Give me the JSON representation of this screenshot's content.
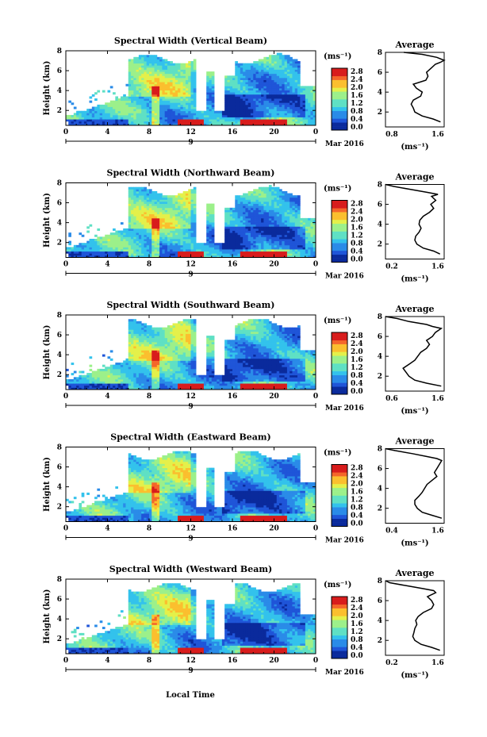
{
  "figure": {
    "footer_xlabel": "Local Time",
    "units_label": "(ms⁻¹)",
    "colorbar_ticks": [
      "2.8",
      "2.4",
      "2.0",
      "1.6",
      "1.2",
      "0.8",
      "0.4",
      "0.0"
    ],
    "colormap": [
      "#0a2a9c",
      "#1f55d8",
      "#2a8be8",
      "#33c2ec",
      "#5fe0c4",
      "#9cf08a",
      "#e4f04a",
      "#fbbf2e",
      "#f4662a",
      "#d81c1c"
    ],
    "date_label": "Mar 2016",
    "day_label": "9"
  },
  "chart_data": [
    {
      "type": "heatmap",
      "title": "Spectral Width (Vertical Beam)",
      "ylabel": "Height (km)",
      "xlim": [
        0,
        24
      ],
      "ylim": [
        0.5,
        8
      ],
      "xticks": [
        "0",
        "4",
        "8",
        "12",
        "16",
        "20",
        "0"
      ],
      "yticks": [
        "2",
        "4",
        "6",
        "8"
      ],
      "colorbar": {
        "range": [
          0.0,
          2.8
        ],
        "units": "(ms⁻¹)"
      },
      "profile": {
        "type": "line",
        "title": "Average",
        "xlabel": "(ms⁻¹)",
        "xlim": [
          0.8,
          1.6
        ],
        "xticks": [
          "0.8",
          "1.6"
        ],
        "ylim": [
          0.5,
          8
        ],
        "yticks": [
          "2",
          "4",
          "6",
          "8"
        ],
        "x": [
          1.55,
          1.45,
          1.3,
          1.2,
          1.18,
          1.15,
          1.18,
          1.28,
          1.3,
          1.22,
          1.18,
          1.35,
          1.38,
          1.36,
          1.42,
          1.48,
          1.55,
          1.6,
          1.5,
          1.3,
          1.05
        ],
        "y": [
          1.0,
          1.3,
          1.6,
          2.0,
          2.4,
          2.8,
          3.2,
          3.6,
          4.0,
          4.4,
          4.8,
          5.2,
          5.6,
          6.0,
          6.4,
          6.8,
          7.0,
          7.2,
          7.5,
          7.8,
          8.0
        ]
      }
    },
    {
      "type": "heatmap",
      "title": "Spectral Width (Northward Beam)",
      "ylabel": "Height (km)",
      "xlim": [
        0,
        24
      ],
      "ylim": [
        0.5,
        8
      ],
      "xticks": [
        "0",
        "4",
        "8",
        "12",
        "16",
        "20",
        "0"
      ],
      "yticks": [
        "2",
        "4",
        "6",
        "8"
      ],
      "colorbar": {
        "range": [
          0.0,
          2.8
        ],
        "units": "(ms⁻¹)"
      },
      "profile": {
        "type": "line",
        "title": "Average",
        "xlabel": "(ms⁻¹)",
        "xlim": [
          0.2,
          1.6
        ],
        "xticks": [
          "0.2",
          "1.6"
        ],
        "ylim": [
          0.5,
          8
        ],
        "yticks": [
          "2",
          "4",
          "6",
          "8"
        ],
        "x": [
          1.5,
          1.35,
          1.1,
          0.95,
          0.9,
          0.92,
          1.0,
          1.05,
          1.0,
          1.02,
          1.1,
          1.25,
          1.35,
          1.28,
          1.4,
          1.3,
          1.45,
          1.2,
          0.8,
          0.4,
          0.2
        ],
        "y": [
          1.0,
          1.3,
          1.6,
          2.0,
          2.4,
          2.8,
          3.2,
          3.6,
          4.0,
          4.4,
          4.8,
          5.2,
          5.6,
          6.0,
          6.4,
          6.8,
          7.0,
          7.2,
          7.5,
          7.8,
          8.0
        ]
      }
    },
    {
      "type": "heatmap",
      "title": "Spectral Width (Southward Beam)",
      "ylabel": "Height (km)",
      "xlim": [
        0,
        24
      ],
      "ylim": [
        0.5,
        8
      ],
      "xticks": [
        "0",
        "4",
        "8",
        "12",
        "16",
        "20",
        "0"
      ],
      "yticks": [
        "2",
        "4",
        "6",
        "8"
      ],
      "colorbar": {
        "range": [
          0.0,
          2.8
        ],
        "units": "(ms⁻¹)"
      },
      "profile": {
        "type": "line",
        "title": "Average",
        "xlabel": "(ms⁻¹)",
        "xlim": [
          0.6,
          1.6
        ],
        "xticks": [
          "0.6",
          "1.6"
        ],
        "ylim": [
          0.5,
          8
        ],
        "yticks": [
          "2",
          "4",
          "6",
          "8"
        ],
        "x": [
          1.55,
          1.3,
          1.1,
          1.0,
          0.95,
          0.9,
          1.0,
          1.1,
          1.15,
          1.2,
          1.3,
          1.35,
          1.3,
          1.4,
          1.45,
          1.55,
          1.4,
          1.3,
          1.0,
          0.8,
          0.6
        ],
        "y": [
          1.0,
          1.3,
          1.6,
          2.0,
          2.4,
          2.8,
          3.2,
          3.6,
          4.0,
          4.4,
          4.8,
          5.2,
          5.6,
          6.0,
          6.4,
          6.8,
          7.0,
          7.2,
          7.5,
          7.8,
          8.0
        ]
      }
    },
    {
      "type": "heatmap",
      "title": "Spectral Width (Eastward Beam)",
      "ylabel": "Height (km)",
      "xlim": [
        0,
        24
      ],
      "ylim": [
        0.5,
        8
      ],
      "xticks": [
        "0",
        "4",
        "8",
        "12",
        "16",
        "20",
        "0"
      ],
      "yticks": [
        "2",
        "4",
        "6",
        "8"
      ],
      "colorbar": {
        "range": [
          0.0,
          2.8
        ],
        "units": "(ms⁻¹)"
      },
      "profile": {
        "type": "line",
        "title": "Average",
        "xlabel": "(ms⁻¹)",
        "xlim": [
          0.4,
          1.6
        ],
        "xticks": [
          "0.4",
          "1.6"
        ],
        "ylim": [
          0.5,
          8
        ],
        "yticks": [
          "2",
          "4",
          "6",
          "8"
        ],
        "x": [
          1.55,
          1.35,
          1.15,
          1.05,
          1.0,
          1.0,
          1.08,
          1.15,
          1.2,
          1.25,
          1.35,
          1.45,
          1.4,
          1.45,
          1.5,
          1.55,
          1.45,
          1.25,
          0.95,
          0.6,
          0.4
        ],
        "y": [
          1.0,
          1.3,
          1.6,
          2.0,
          2.4,
          2.8,
          3.2,
          3.6,
          4.0,
          4.4,
          4.8,
          5.2,
          5.6,
          6.0,
          6.4,
          6.8,
          7.0,
          7.2,
          7.5,
          7.8,
          8.0
        ]
      }
    },
    {
      "type": "heatmap",
      "title": "Spectral Width (Westward Beam)",
      "ylabel": "Height (km)",
      "xlim": [
        0,
        24
      ],
      "ylim": [
        0.5,
        8
      ],
      "xticks": [
        "0",
        "4",
        "8",
        "12",
        "16",
        "20",
        "0"
      ],
      "yticks": [
        "2",
        "4",
        "6",
        "8"
      ],
      "colorbar": {
        "range": [
          0.0,
          2.8
        ],
        "units": "(ms⁻¹)"
      },
      "profile": {
        "type": "line",
        "title": "Average",
        "xlabel": "(ms⁻¹)",
        "xlim": [
          0.2,
          1.6
        ],
        "xticks": [
          "0.2",
          "1.6"
        ],
        "ylim": [
          0.5,
          8
        ],
        "yticks": [
          "2",
          "4",
          "6",
          "8"
        ],
        "x": [
          1.5,
          1.3,
          1.05,
          0.9,
          0.85,
          0.88,
          0.9,
          0.95,
          0.92,
          0.98,
          1.1,
          1.3,
          1.35,
          1.3,
          1.2,
          1.4,
          1.35,
          1.1,
          0.7,
          0.3,
          0.2
        ],
        "y": [
          1.0,
          1.3,
          1.6,
          2.0,
          2.4,
          2.8,
          3.2,
          3.6,
          4.0,
          4.4,
          4.8,
          5.2,
          5.6,
          6.0,
          6.4,
          6.8,
          7.0,
          7.2,
          7.5,
          7.8,
          8.0
        ]
      }
    }
  ]
}
